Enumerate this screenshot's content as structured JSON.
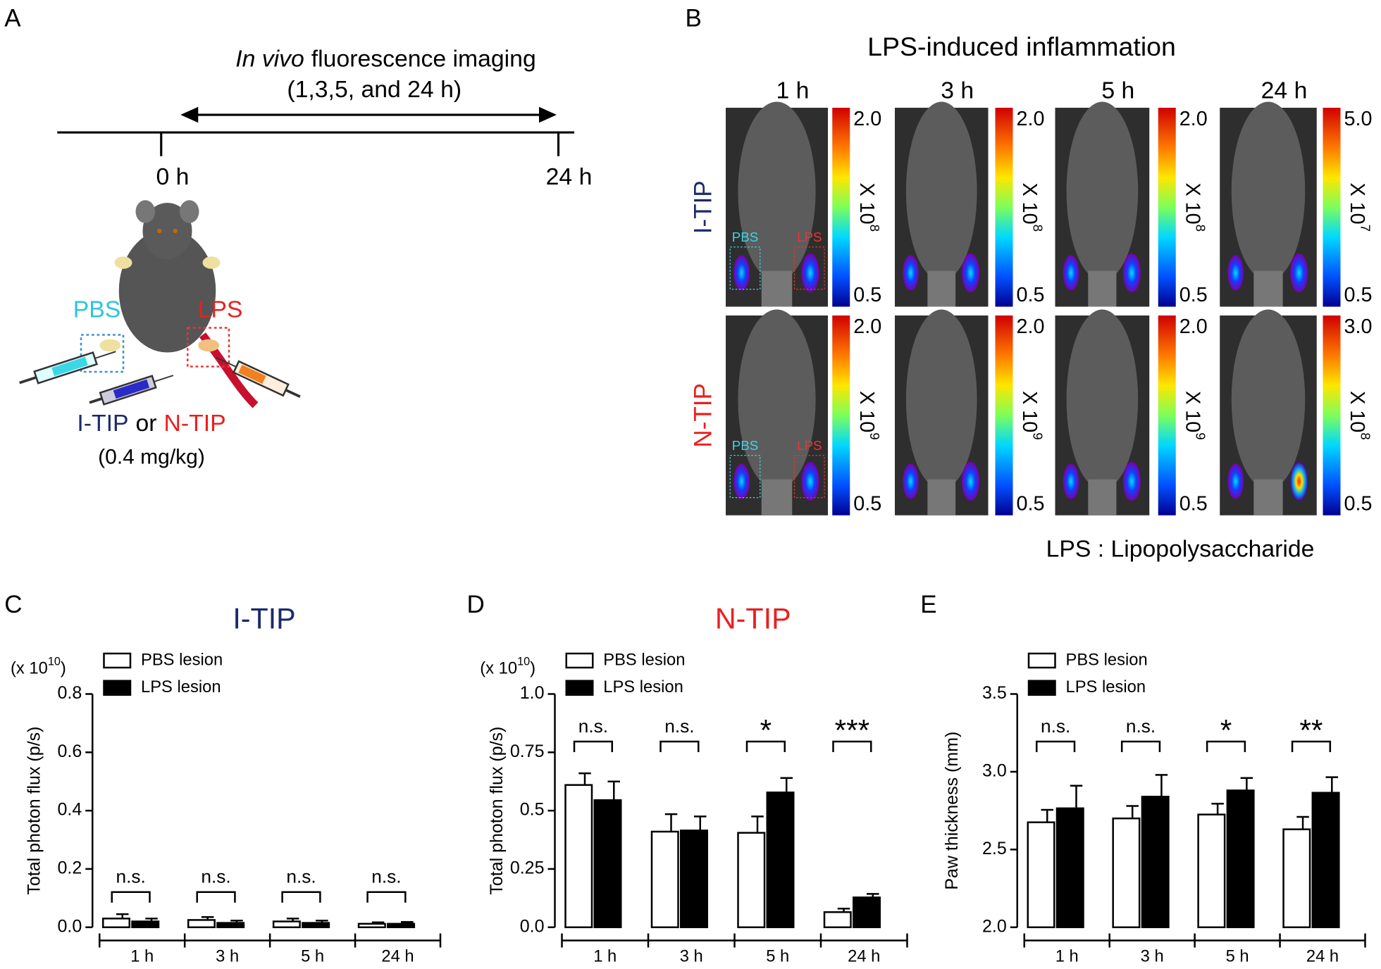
{
  "panels": {
    "A": {
      "letter": "A",
      "timeline_title_italic": "In vivo",
      "timeline_title_rest": "fluorescence imaging",
      "timeline_subtitle": "(1,3,5, and 24 h)",
      "start": "0 h",
      "end": "24 h",
      "pbs": "PBS",
      "lps": "LPS",
      "agent_1": "I-TIP",
      "agent_or": "or",
      "agent_2": "N-TIP",
      "dose": "(0.4 mg/kg)"
    },
    "B": {
      "letter": "B",
      "title": "LPS-induced inflammation",
      "columns": [
        "1 h",
        "3 h",
        "5 h",
        "24 h"
      ],
      "rows": [
        {
          "label": "I-TIP",
          "color": "#1b2a6b",
          "scales": [
            {
              "max": "2.0",
              "min": "0.5",
              "unit": "X 10",
              "exp": "8"
            },
            {
              "max": "2.0",
              "min": "0.5",
              "unit": "X 10",
              "exp": "8"
            },
            {
              "max": "2.0",
              "min": "0.5",
              "unit": "X 10",
              "exp": "8"
            },
            {
              "max": "5.0",
              "min": "0.5",
              "unit": "X 10",
              "exp": "7"
            }
          ]
        },
        {
          "label": "N-TIP",
          "color": "#e8201f",
          "scales": [
            {
              "max": "2.0",
              "min": "0.5",
              "unit": "X 10",
              "exp": "9"
            },
            {
              "max": "2.0",
              "min": "0.5",
              "unit": "X 10",
              "exp": "9"
            },
            {
              "max": "2.0",
              "min": "0.5",
              "unit": "X 10",
              "exp": "9"
            },
            {
              "max": "3.0",
              "min": "0.5",
              "unit": "X 10",
              "exp": "8"
            }
          ]
        }
      ],
      "roi_labels": [
        "PBS",
        "LPS"
      ],
      "footnote": "LPS : Lipopolysaccharide"
    }
  },
  "chart_data": [
    {
      "type": "bar",
      "letter": "C",
      "title": "I-TIP",
      "title_color": "#1b2a6b",
      "ylabel": "Total photon flux (p/s)",
      "y_multiplier": {
        "prefix": "(x 10",
        "exp": "10",
        "suffix": ")"
      },
      "categories": [
        "1 h",
        "3 h",
        "5 h",
        "24 h"
      ],
      "series": [
        {
          "name": "PBS lesion",
          "color": "#ffffff",
          "values": [
            0.03,
            0.025,
            0.02,
            0.012
          ],
          "errors": [
            0.015,
            0.01,
            0.01,
            0.005
          ]
        },
        {
          "name": "LPS lesion",
          "color": "#000000",
          "values": [
            0.02,
            0.015,
            0.015,
            0.012
          ],
          "errors": [
            0.01,
            0.008,
            0.008,
            0.006
          ]
        }
      ],
      "ylim": [
        0,
        0.8
      ],
      "yticks": [
        {
          "value": 0,
          "label": "0.0"
        },
        0.2,
        0.4,
        0.6,
        0.8
      ],
      "annotations": [
        "n.s.",
        "n.s.",
        "n.s.",
        "n.s."
      ]
    },
    {
      "type": "bar",
      "letter": "D",
      "title": "N-TIP",
      "title_color": "#e8201f",
      "ylabel": "Total photon flux (p/s)",
      "y_multiplier": {
        "prefix": "(x 10",
        "exp": "10",
        "suffix": ")"
      },
      "categories": [
        "1 h",
        "3 h",
        "5 h",
        "24 h"
      ],
      "series": [
        {
          "name": "PBS lesion",
          "color": "#ffffff",
          "values": [
            0.61,
            0.41,
            0.405,
            0.065
          ],
          "errors": [
            0.05,
            0.075,
            0.07,
            0.015
          ]
        },
        {
          "name": "LPS lesion",
          "color": "#000000",
          "values": [
            0.545,
            0.415,
            0.578,
            0.128
          ],
          "errors": [
            0.08,
            0.06,
            0.062,
            0.015
          ]
        }
      ],
      "ylim": [
        0,
        1
      ],
      "yticks": [
        {
          "value": 0,
          "label": "0.0"
        },
        0.25,
        0.5,
        0.75,
        {
          "value": 1,
          "label": "1.0"
        }
      ],
      "annotations": [
        "n.s.",
        "n.s.",
        "*",
        "***"
      ]
    },
    {
      "type": "bar",
      "letter": "E",
      "ylabel": "Paw thickness (mm)",
      "categories": [
        "1 h",
        "3 h",
        "5 h",
        "24 h"
      ],
      "series": [
        {
          "name": "PBS lesion",
          "color": "#ffffff",
          "values": [
            2.675,
            2.7,
            2.725,
            2.63
          ],
          "errors": [
            0.08,
            0.08,
            0.07,
            0.08
          ]
        },
        {
          "name": "LPS lesion",
          "color": "#000000",
          "values": [
            2.765,
            2.84,
            2.88,
            2.865
          ],
          "errors": [
            0.145,
            0.14,
            0.08,
            0.1
          ]
        }
      ],
      "ylim": [
        2,
        3.5
      ],
      "yticks": [
        {
          "value": 2,
          "label": "2.0"
        },
        2.5,
        {
          "value": 3,
          "label": "3.0"
        },
        3.5
      ],
      "annotations": [
        "n.s.",
        "n.s.",
        "*",
        "**"
      ]
    }
  ]
}
